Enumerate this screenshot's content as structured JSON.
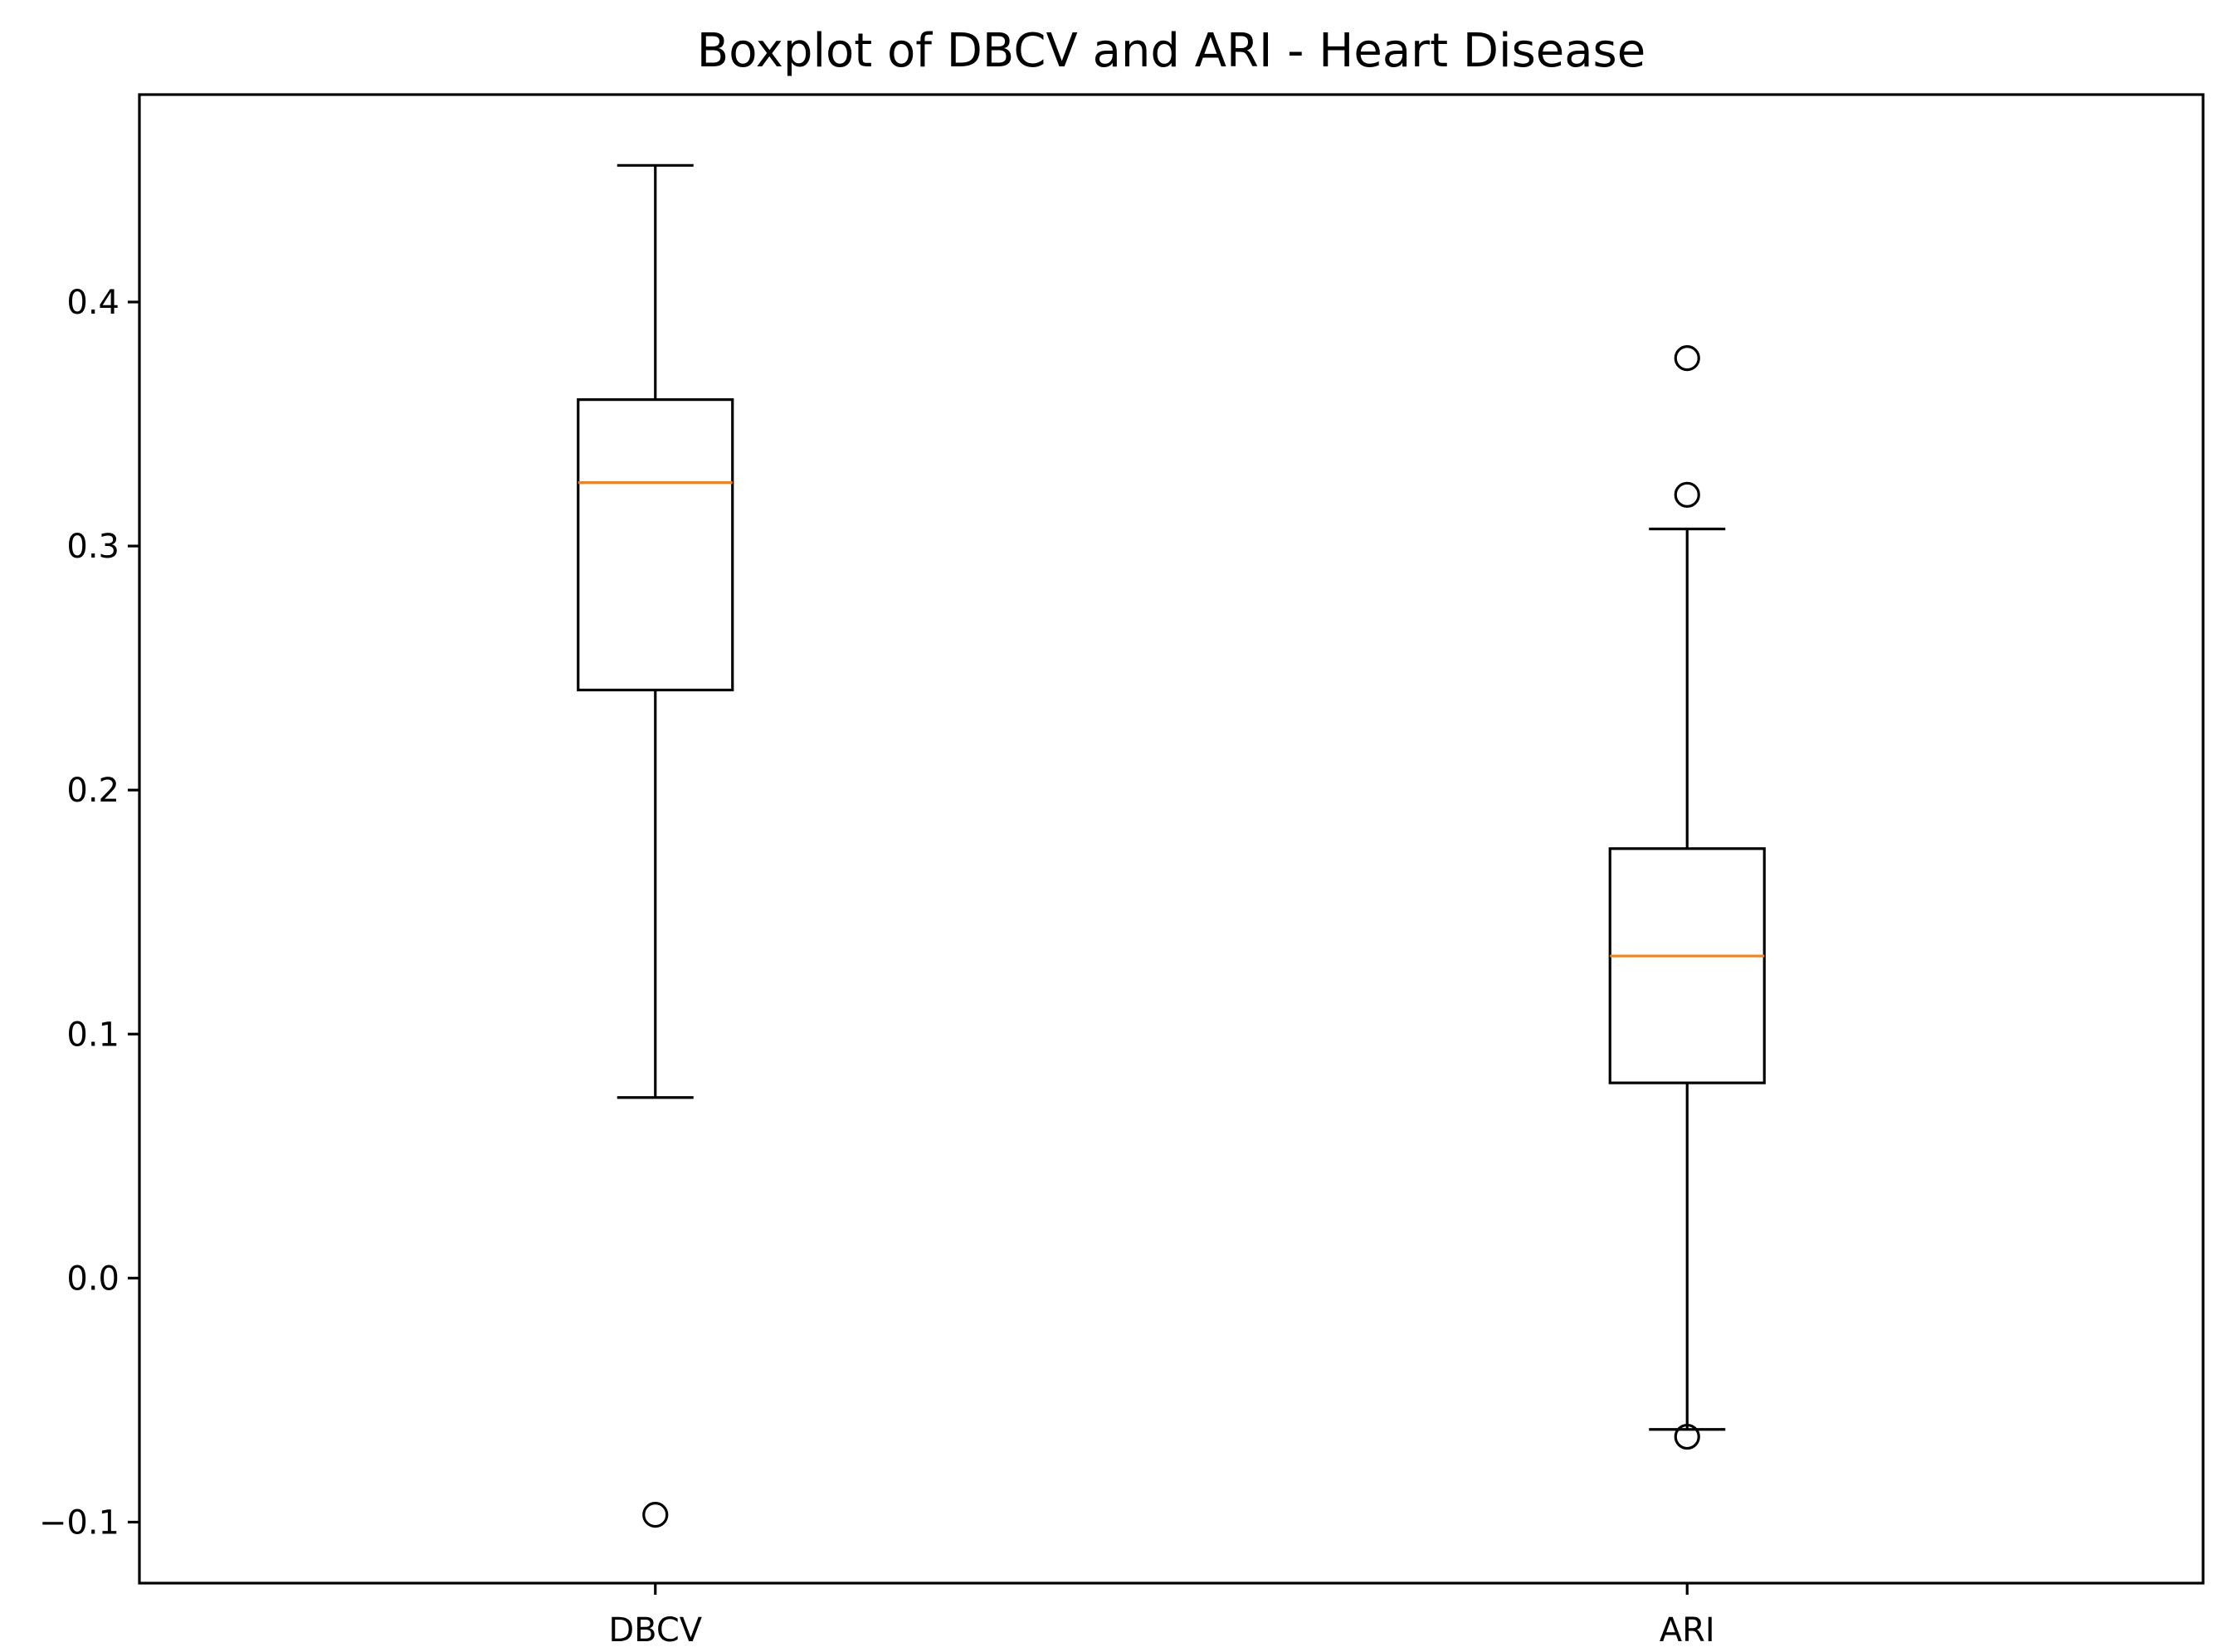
{
  "chart_data": {
    "type": "boxplot",
    "title": "Boxplot of DBCV and ARI - Heart Disease",
    "xlabel": "",
    "ylabel": "",
    "ylim": [
      -0.125,
      0.485
    ],
    "yticks": [
      -0.1,
      0.0,
      0.1,
      0.2,
      0.3,
      0.4
    ],
    "ytick_labels": [
      "−0.1",
      "0.0",
      "0.1",
      "0.2",
      "0.3",
      "0.4"
    ],
    "grid": false,
    "categories": [
      "DBCV",
      "ARI"
    ],
    "boxes": [
      {
        "name": "DBCV",
        "whisker_low": 0.074,
        "q1": 0.241,
        "median": 0.326,
        "q3": 0.36,
        "whisker_high": 0.456,
        "outliers": [
          -0.097
        ]
      },
      {
        "name": "ARI",
        "whisker_low": -0.062,
        "q1": 0.08,
        "median": 0.132,
        "q3": 0.176,
        "whisker_high": 0.307,
        "outliers": [
          0.377,
          0.321,
          -0.065
        ]
      }
    ],
    "colors": {
      "box": "#000000",
      "median": "#ff7f0e",
      "outlier": "#000000",
      "background": "#ffffff"
    }
  }
}
